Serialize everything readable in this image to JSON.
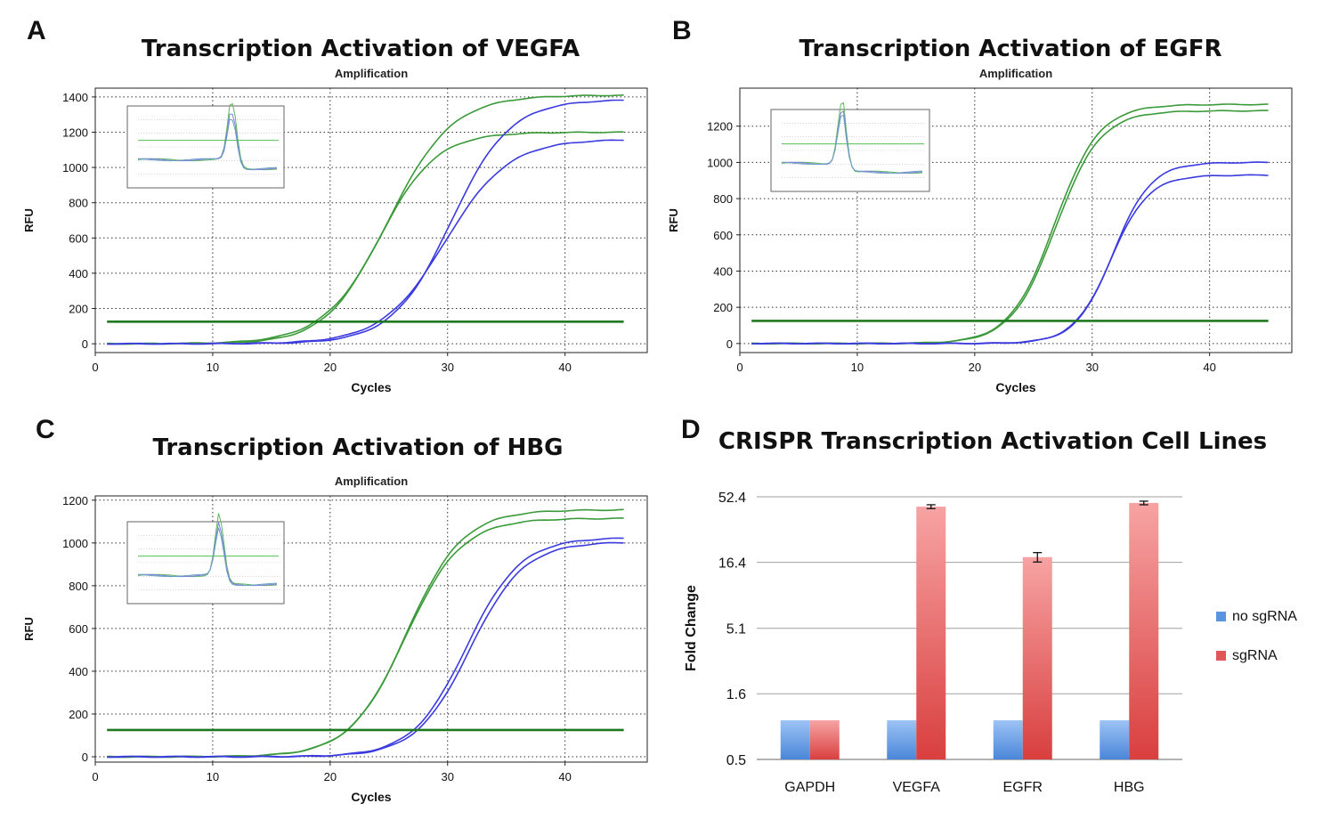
{
  "chart_data": [
    {
      "type": "line",
      "panel_letter": "A",
      "title": "Transcription Activation of VEGFA",
      "subtitle": "Amplification",
      "xlabel": "Cycles",
      "ylabel": "RFU",
      "xlim": [
        0,
        47
      ],
      "ylim": [
        -50,
        1450
      ],
      "xticks": [
        0,
        10,
        20,
        30,
        40
      ],
      "yticks": [
        0,
        200,
        400,
        600,
        800,
        1000,
        1200,
        1400
      ],
      "grid": true,
      "threshold": 125,
      "inset": "melt-peak",
      "series": [
        {
          "color": "#3a9a3a",
          "plateau": 1410,
          "midpoint": 25.0,
          "slope": 2.7
        },
        {
          "color": "#3a9a3a",
          "plateau": 1200,
          "midpoint": 24.2,
          "slope": 2.4
        },
        {
          "color": "#3a3adf",
          "plateau": 1385,
          "midpoint": 30.3,
          "slope": 2.5
        },
        {
          "color": "#3a3adf",
          "plateau": 1160,
          "midpoint": 29.8,
          "slope": 2.7
        }
      ]
    },
    {
      "type": "line",
      "panel_letter": "B",
      "title": "Transcription Activation of EGFR",
      "subtitle": "Amplification",
      "xlabel": "Cycles",
      "ylabel": "RFU",
      "xlim": [
        0,
        47
      ],
      "ylim": [
        -50,
        1410
      ],
      "xticks": [
        0,
        10,
        20,
        30,
        40
      ],
      "yticks": [
        0,
        200,
        400,
        600,
        800,
        1000,
        1200
      ],
      "grid": true,
      "threshold": 125,
      "inset": "melt-peak",
      "series": [
        {
          "color": "#3a9a3a",
          "plateau": 1320,
          "midpoint": 26.8,
          "slope": 1.9
        },
        {
          "color": "#3a9a3a",
          "plateau": 1285,
          "midpoint": 26.9,
          "slope": 1.9
        },
        {
          "color": "#3a3adf",
          "plateau": 1000,
          "midpoint": 31.8,
          "slope": 1.6
        },
        {
          "color": "#3a3adf",
          "plateau": 930,
          "midpoint": 31.6,
          "slope": 1.6
        }
      ]
    },
    {
      "type": "line",
      "panel_letter": "C",
      "title": "Transcription Activation of HBG",
      "subtitle": "Amplification",
      "xlabel": "Cycles",
      "ylabel": "RFU",
      "xlim": [
        0,
        47
      ],
      "ylim": [
        -25,
        1220
      ],
      "xticks": [
        0,
        10,
        20,
        30,
        40
      ],
      "yticks": [
        0,
        200,
        400,
        600,
        800,
        1000,
        1200
      ],
      "grid": true,
      "threshold": 125,
      "inset": "melt-peak",
      "series": [
        {
          "color": "#3a9a3a",
          "plateau": 1155,
          "midpoint": 26.5,
          "slope": 2.4
        },
        {
          "color": "#3a9a3a",
          "plateau": 1115,
          "midpoint": 26.4,
          "slope": 2.4
        },
        {
          "color": "#3a3adf",
          "plateau": 1025,
          "midpoint": 31.6,
          "slope": 2.3
        },
        {
          "color": "#3a3adf",
          "plateau": 1005,
          "midpoint": 31.9,
          "slope": 2.3
        }
      ]
    },
    {
      "type": "bar",
      "panel_letter": "D",
      "title": "CRISPR Transcription Activation Cell Lines",
      "ylabel": "Fold Change",
      "yscale": "log",
      "yticks": [
        "0.5",
        "1.6",
        "5.1",
        "16.4",
        "52.4"
      ],
      "ylim": [
        0.5,
        52.4
      ],
      "categories": [
        "GAPDH",
        "VEGFA",
        "EGFR",
        "HBG"
      ],
      "legend_position": "right",
      "series": [
        {
          "name": "no sgRNA",
          "color": "#5b93e0",
          "values": [
            1,
            1,
            1,
            1
          ]
        },
        {
          "name": "sgRNA",
          "color": "#e05555",
          "values": [
            1,
            44,
            18,
            47
          ],
          "errors": [
            0,
            1.5,
            1.5,
            1.5
          ]
        }
      ]
    }
  ]
}
